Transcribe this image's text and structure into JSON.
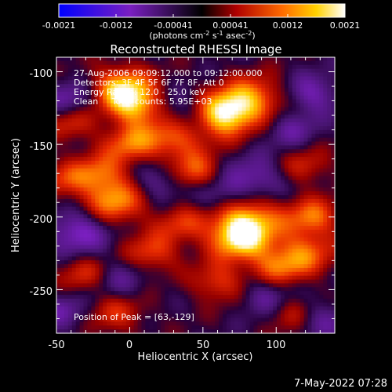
{
  "chart_data": {
    "type": "heatmap",
    "title": "Reconstructed RHESSI Image",
    "xlabel": "Heliocentric X (arcsec)",
    "ylabel": "Heliocentric Y (arcsec)",
    "xlim": [
      -50,
      140
    ],
    "ylim": [
      -280,
      -90
    ],
    "xticks": [
      "-50",
      "0",
      "50",
      "100"
    ],
    "yticks": [
      "-100",
      "-150",
      "-200",
      "-250"
    ],
    "colorbar": {
      "tick_labels": [
        "-0.0021",
        "-0.0012",
        "-0.00041",
        "0.00041",
        "0.0012",
        "0.0021"
      ],
      "range": [
        -0.0021,
        0.0021
      ],
      "label_parts": {
        "a": "(photons cm",
        "b": "-2",
        "c": " s",
        "d": "-1",
        "e": " asec",
        "f": "-2",
        "g": ")"
      }
    },
    "info_lines": [
      "27-Aug-2006 09:09:12.000 to 09:12:00.000",
      "Detectors: 3F 4F 5F 6F 7F 8F, Att 0",
      "Energy Range: 12.0 - 25.0 keV",
      "Clean     Total counts: 5.95E+03"
    ],
    "peak_label": "Position of Peak = [63,-129]",
    "peak": [
      63,
      -129
    ],
    "blobs": [
      [
        -5,
        -112,
        2.4,
        7
      ],
      [
        5,
        -125,
        1.6,
        6
      ],
      [
        63,
        -129,
        3.0,
        7
      ],
      [
        30,
        -145,
        1.8,
        7
      ],
      [
        85,
        -118,
        1.7,
        7
      ],
      [
        -40,
        -135,
        1.2,
        6
      ],
      [
        45,
        -170,
        1.6,
        6
      ],
      [
        -10,
        -190,
        1.9,
        7
      ],
      [
        -20,
        -170,
        1.5,
        6
      ],
      [
        80,
        -200,
        2.0,
        8
      ],
      [
        125,
        -200,
        1.6,
        6
      ],
      [
        120,
        -225,
        1.5,
        7
      ],
      [
        75,
        -215,
        2.2,
        7
      ],
      [
        15,
        -225,
        1.4,
        6
      ],
      [
        -30,
        -240,
        1.3,
        6
      ],
      [
        60,
        -245,
        1.3,
        6
      ],
      [
        100,
        -235,
        1.4,
        6
      ],
      [
        -10,
        -265,
        1.2,
        7
      ],
      [
        110,
        -265,
        1.2,
        6
      ],
      [
        0,
        -150,
        1.5,
        6
      ],
      [
        120,
        -165,
        1.0,
        6
      ],
      [
        -45,
        -175,
        1.1,
        6
      ],
      [
        35,
        -205,
        1.1,
        6
      ],
      [
        -40,
        -120,
        -1.2,
        6
      ],
      [
        -35,
        -210,
        -1.5,
        7
      ],
      [
        40,
        -130,
        -1.3,
        7
      ],
      [
        85,
        -175,
        -1.3,
        7
      ],
      [
        125,
        -115,
        -1.2,
        6
      ],
      [
        60,
        -185,
        -1.1,
        6
      ],
      [
        -10,
        -245,
        -1.0,
        7
      ],
      [
        95,
        -255,
        -1.2,
        6
      ],
      [
        130,
        -270,
        -1.0,
        6
      ],
      [
        -45,
        -265,
        -1.0,
        6
      ],
      [
        20,
        -175,
        -1.0,
        6
      ],
      [
        110,
        -140,
        -0.9,
        6
      ]
    ]
  }
}
